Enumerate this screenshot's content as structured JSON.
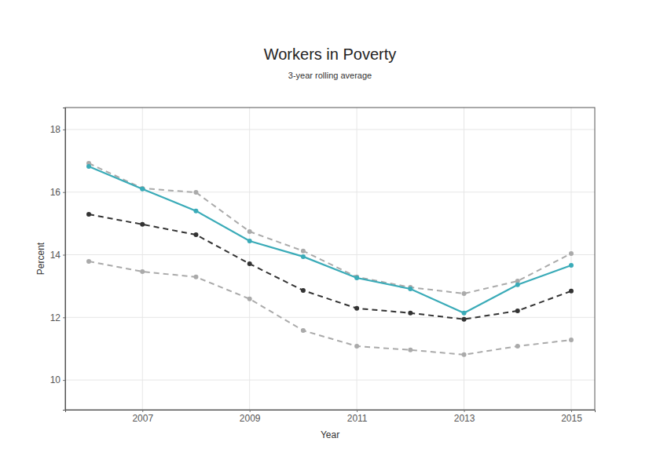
{
  "chart_data": {
    "type": "line",
    "title": "Workers in Poverty",
    "subtitle": "3-year rolling average",
    "x_label": "Year",
    "y_label": "Percent",
    "x": [
      2006,
      2007,
      2008,
      2009,
      2010,
      2011,
      2012,
      2013,
      2014,
      2015
    ],
    "series": [
      {
        "color": "#aaaaaa",
        "line_style": "dashed",
        "marker": "circle",
        "values": [
          16.92,
          16.12,
          15.99,
          14.74,
          14.12,
          13.29,
          12.96,
          12.76,
          13.16,
          14.04
        ]
      },
      {
        "color": "#aaaaaa",
        "line_style": "dashed",
        "marker": "circle",
        "values": [
          13.79,
          13.46,
          13.29,
          12.59,
          11.58,
          11.08,
          10.96,
          10.81,
          11.08,
          11.28
        ]
      },
      {
        "color": "#333333",
        "line_style": "dashed",
        "marker": "circle",
        "values": [
          15.29,
          14.97,
          14.64,
          13.71,
          12.86,
          12.29,
          12.14,
          11.94,
          12.21,
          12.84
        ]
      },
      {
        "color": "#3aabb8",
        "line_style": "solid",
        "marker": "circle",
        "values": [
          16.82,
          16.1,
          15.4,
          14.44,
          13.94,
          13.26,
          12.91,
          12.14,
          13.04,
          13.66
        ]
      }
    ],
    "xlim": [
      2005.56,
      2015.44
    ],
    "xticks": [
      2007,
      2009,
      2011,
      2013,
      2015
    ],
    "ylim": [
      9.05,
      18.7
    ],
    "yticks": [
      10,
      12,
      14,
      16,
      18
    ],
    "grid": true
  }
}
